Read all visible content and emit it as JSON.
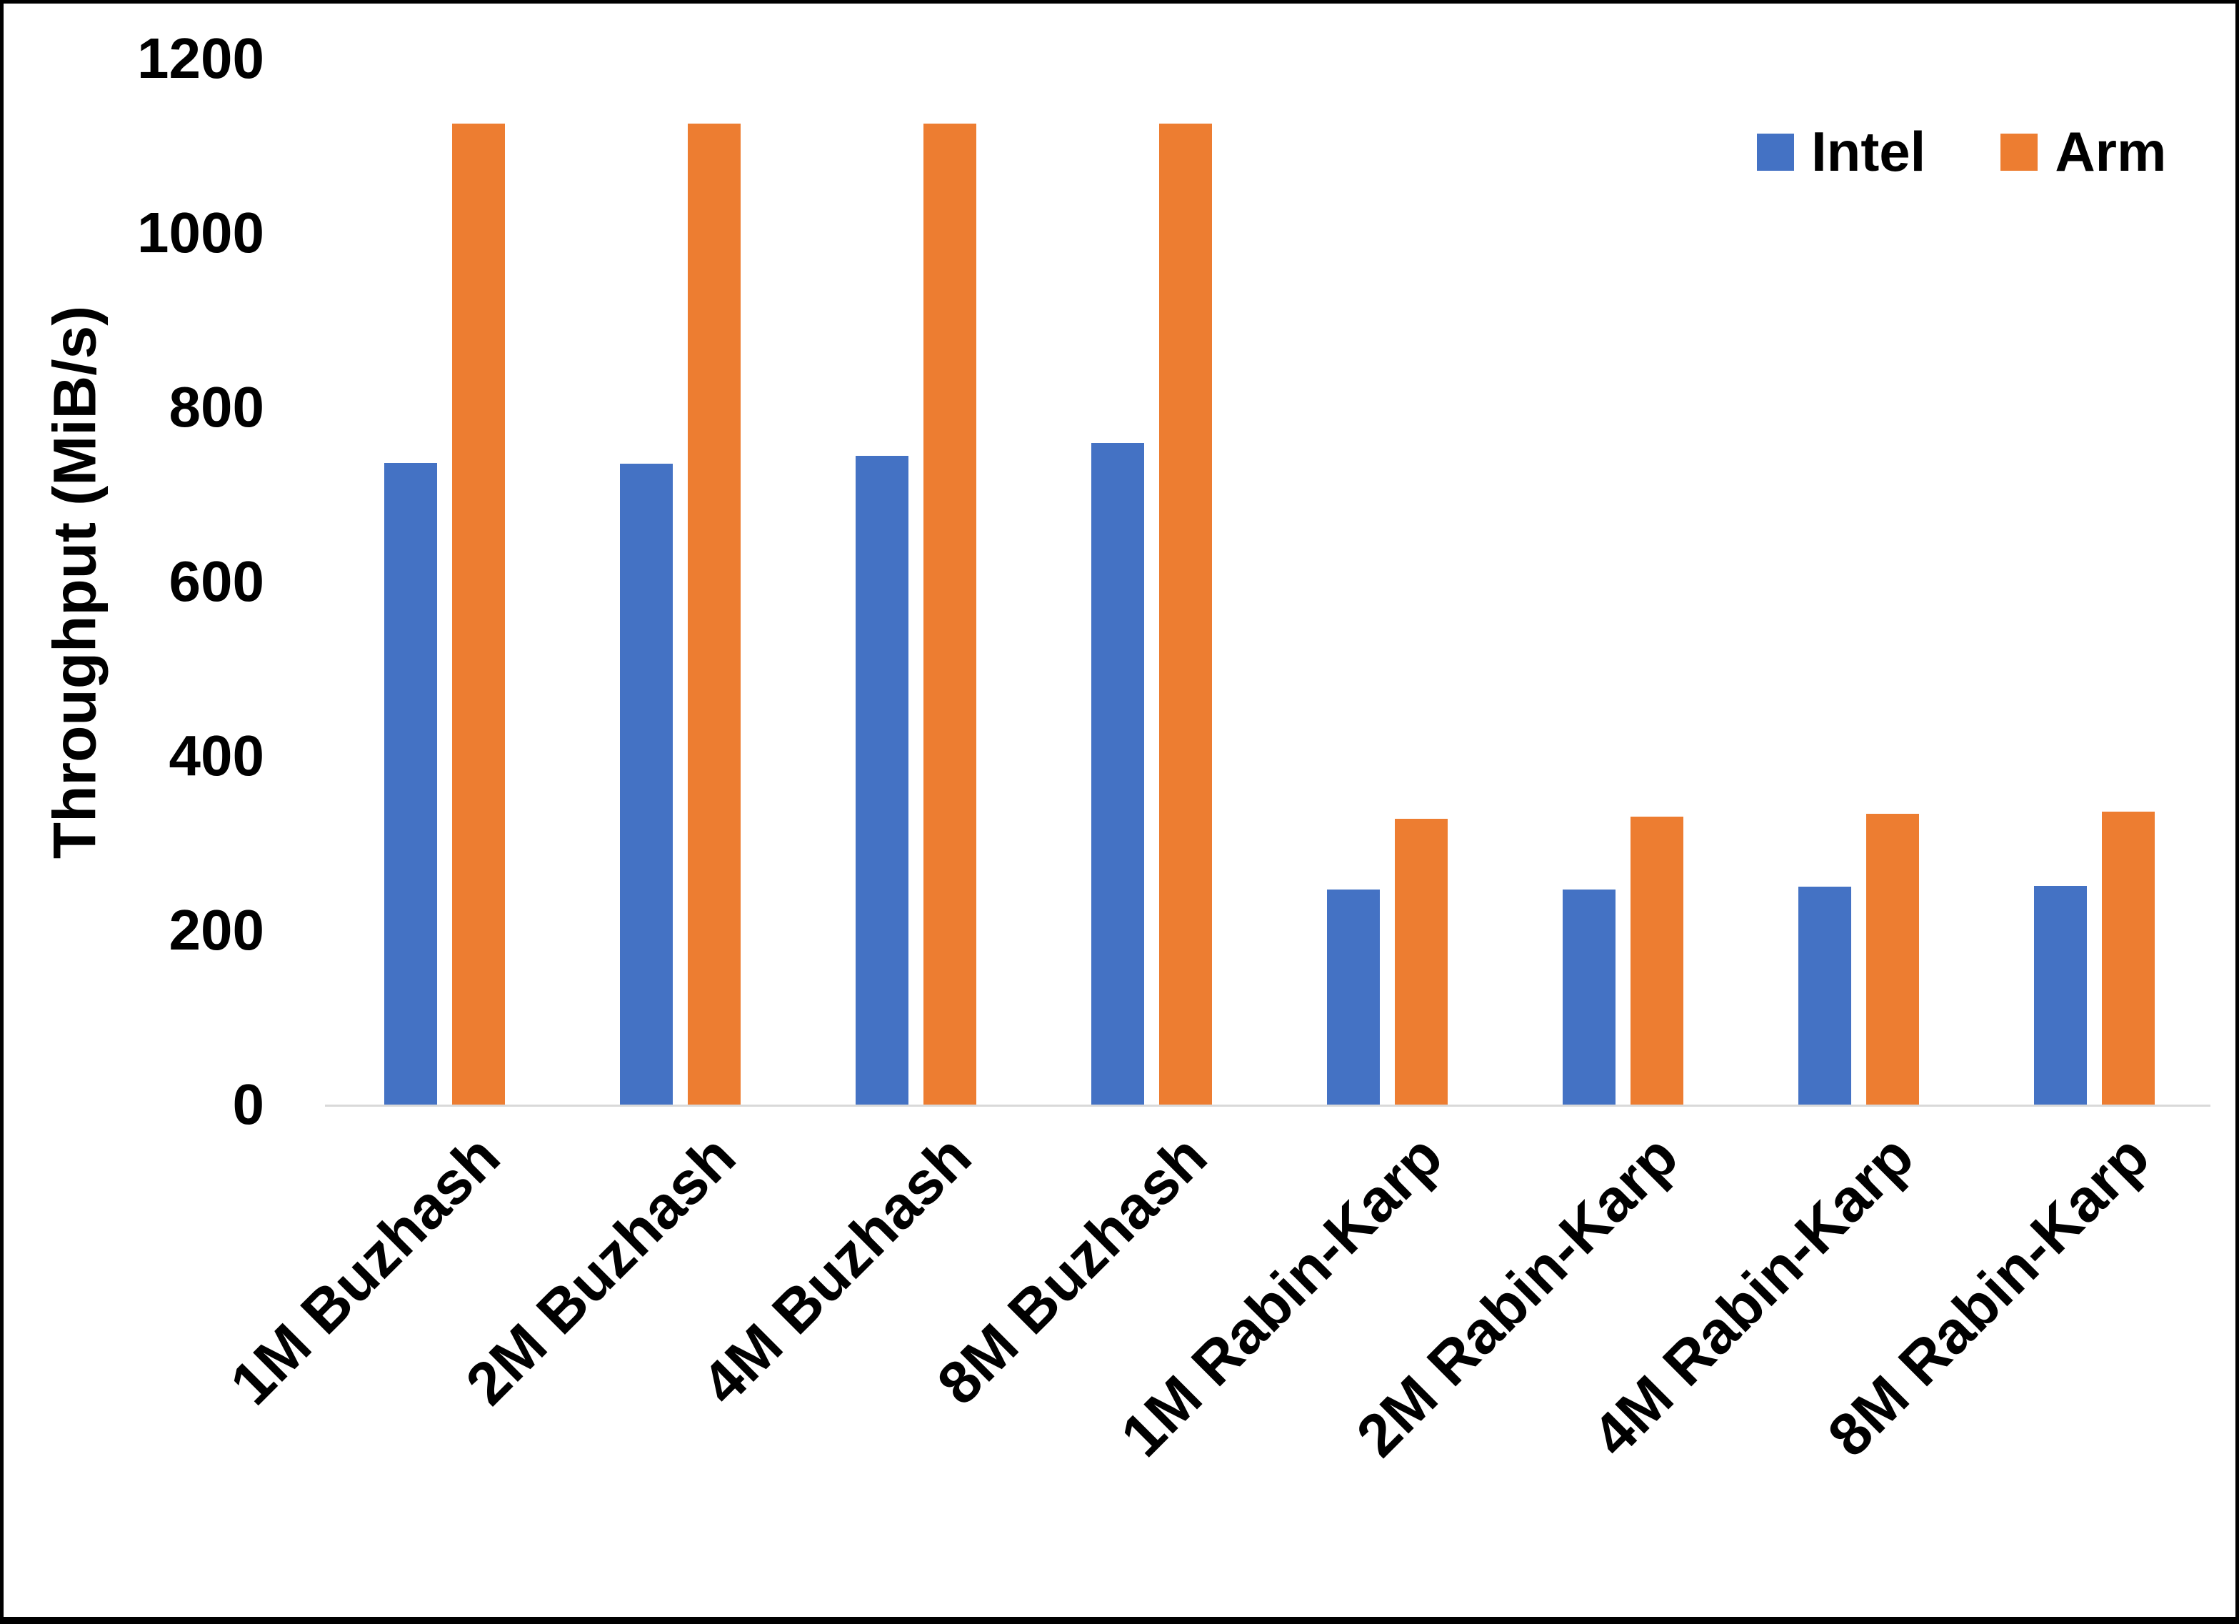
{
  "chart_data": {
    "type": "bar",
    "title": "",
    "ylabel": "Throughput (MiB/s)",
    "xlabel": "",
    "categories": [
      "1M Buzhash",
      "2M Buzhash",
      "4M Buzhash",
      "8M Buzhash",
      "1M Rabin-Karp",
      "2M Rabin-Karp",
      "4M Rabin-Karp",
      "8M Rabin-Karp"
    ],
    "series": [
      {
        "name": "Intel",
        "color": "#4472C4",
        "values": [
          736,
          735,
          744,
          759,
          247,
          247,
          250,
          251
        ]
      },
      {
        "name": "Arm",
        "color": "#ED7D31",
        "values": [
          1125,
          1125,
          1125,
          1125,
          328,
          330,
          334,
          336
        ]
      }
    ],
    "y_ticks": [
      0,
      200,
      400,
      600,
      800,
      1000,
      1200
    ],
    "ylim": [
      0,
      1200
    ],
    "grid": false,
    "legend_position": "top-right",
    "x_tick_rotation_deg": 45,
    "axis_line_color": "#D9D9D9",
    "text_color": "#000000",
    "background_color": "#FFFFFF",
    "frame_border_color": "#000000"
  }
}
